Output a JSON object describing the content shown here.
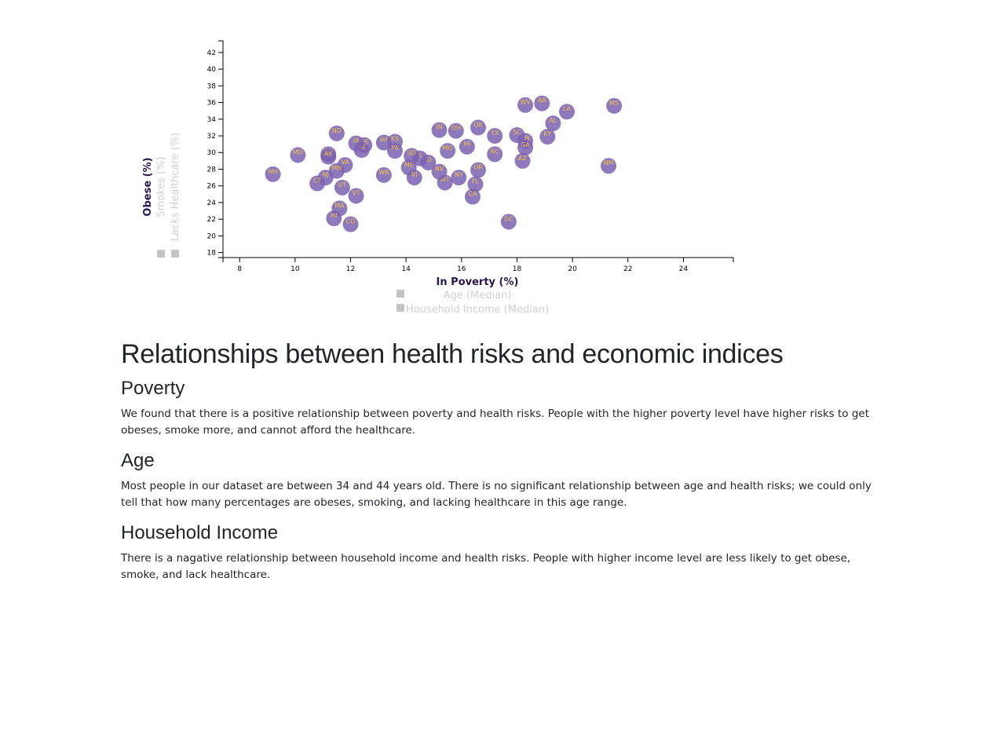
{
  "chart_data": {
    "type": "scatter",
    "xlim": [
      7.4,
      25.8
    ],
    "ylim": [
      17.4,
      43.4
    ],
    "x_ticks": [
      8,
      10,
      12,
      14,
      16,
      18,
      20,
      22,
      24
    ],
    "y_ticks": [
      18,
      20,
      22,
      24,
      26,
      28,
      30,
      32,
      34,
      36,
      38,
      40,
      42
    ],
    "x_axis_labels": [
      {
        "text": "In Poverty (%)",
        "active": true
      },
      {
        "text": "Age (Median)",
        "active": false
      },
      {
        "text": "Household Income (Median)",
        "active": false
      }
    ],
    "y_axis_labels": [
      {
        "text": "Obese (%)",
        "active": true
      },
      {
        "text": "Smokes (%)",
        "active": false
      },
      {
        "text": "Lacks Healthcare (%)",
        "active": false
      }
    ],
    "point_color": "#7b61b1",
    "label_color": "#f0c341",
    "points": [
      {
        "abbr": "MS",
        "x": 21.5,
        "y": 35.6
      },
      {
        "abbr": "NM",
        "x": 21.3,
        "y": 28.4
      },
      {
        "abbr": "LA",
        "x": 19.8,
        "y": 34.9
      },
      {
        "abbr": "AL",
        "x": 19.3,
        "y": 33.5
      },
      {
        "abbr": "KY",
        "x": 19.1,
        "y": 31.9
      },
      {
        "abbr": "AR",
        "x": 18.9,
        "y": 35.9
      },
      {
        "abbr": "WV",
        "x": 18.3,
        "y": 35.7
      },
      {
        "abbr": "TN",
        "x": 18.3,
        "y": 31.4
      },
      {
        "abbr": "GA",
        "x": 18.3,
        "y": 30.6
      },
      {
        "abbr": "AZ",
        "x": 18.2,
        "y": 29.0
      },
      {
        "abbr": "SC",
        "x": 18.0,
        "y": 32.1
      },
      {
        "abbr": "DC",
        "x": 17.7,
        "y": 21.7
      },
      {
        "abbr": "TX",
        "x": 17.2,
        "y": 32.0
      },
      {
        "abbr": "NC",
        "x": 17.2,
        "y": 29.8
      },
      {
        "abbr": "OK",
        "x": 16.6,
        "y": 33.0
      },
      {
        "abbr": "OR",
        "x": 16.6,
        "y": 27.9
      },
      {
        "abbr": "FL",
        "x": 16.5,
        "y": 26.2
      },
      {
        "abbr": "CA",
        "x": 16.4,
        "y": 24.7
      },
      {
        "abbr": "MI",
        "x": 16.2,
        "y": 30.7
      },
      {
        "abbr": "NY",
        "x": 15.9,
        "y": 27.0
      },
      {
        "abbr": "OH",
        "x": 15.8,
        "y": 32.6
      },
      {
        "abbr": "MO",
        "x": 15.5,
        "y": 30.2
      },
      {
        "abbr": "MT",
        "x": 15.4,
        "y": 26.4
      },
      {
        "abbr": "IN",
        "x": 15.2,
        "y": 32.7
      },
      {
        "abbr": "NV",
        "x": 15.2,
        "y": 27.7
      },
      {
        "abbr": "ID",
        "x": 14.8,
        "y": 28.8
      },
      {
        "abbr": "IL",
        "x": 14.5,
        "y": 29.3
      },
      {
        "abbr": "SD",
        "x": 14.2,
        "y": 29.6
      },
      {
        "abbr": "ME",
        "x": 14.1,
        "y": 28.2
      },
      {
        "abbr": "RI",
        "x": 14.3,
        "y": 27.0
      },
      {
        "abbr": "KS",
        "x": 13.6,
        "y": 31.3
      },
      {
        "abbr": "PA",
        "x": 13.6,
        "y": 30.2
      },
      {
        "abbr": "WI",
        "x": 13.2,
        "y": 31.2
      },
      {
        "abbr": "WA",
        "x": 13.2,
        "y": 27.3
      },
      {
        "abbr": "DE",
        "x": 12.5,
        "y": 30.9
      },
      {
        "abbr": "NE",
        "x": 12.4,
        "y": 30.3
      },
      {
        "abbr": "IA",
        "x": 12.2,
        "y": 31.1
      },
      {
        "abbr": "VT",
        "x": 12.2,
        "y": 24.8
      },
      {
        "abbr": "CO",
        "x": 12.0,
        "y": 21.4
      },
      {
        "abbr": "UT",
        "x": 11.7,
        "y": 25.8
      },
      {
        "abbr": "VA",
        "x": 11.8,
        "y": 28.5
      },
      {
        "abbr": "MA",
        "x": 11.6,
        "y": 23.3
      },
      {
        "abbr": "ND",
        "x": 11.5,
        "y": 32.3
      },
      {
        "abbr": "MN",
        "x": 11.5,
        "y": 27.8
      },
      {
        "abbr": "HI",
        "x": 11.4,
        "y": 22.1
      },
      {
        "abbr": "WY",
        "x": 11.2,
        "y": 29.8
      },
      {
        "abbr": "AK",
        "x": 11.2,
        "y": 29.5
      },
      {
        "abbr": "NJ",
        "x": 11.1,
        "y": 27.0
      },
      {
        "abbr": "CT",
        "x": 10.8,
        "y": 26.3
      },
      {
        "abbr": "MD",
        "x": 10.1,
        "y": 29.7
      },
      {
        "abbr": "NH",
        "x": 9.2,
        "y": 27.4
      }
    ]
  },
  "article": {
    "title": "Relationships between health risks and economic indices",
    "sections": [
      {
        "heading": "Poverty",
        "body": "We found that there is a positive relationship between poverty and health risks. People with the higher poverty level have higher risks to get obeses, smoke more, and cannot afford the healthcare."
      },
      {
        "heading": "Age",
        "body": "Most people in our dataset are between 34 and 44 years old. There is no significant relationship between age and health risks; we could only tell that how many percentages are obeses, smoking, and lacking healthcare in this age range."
      },
      {
        "heading": "Household Income",
        "body": "There is a nagative relationship between household income and health risks. People with higher income level are less likely to get obese, smoke, and lack healthcare."
      }
    ]
  }
}
